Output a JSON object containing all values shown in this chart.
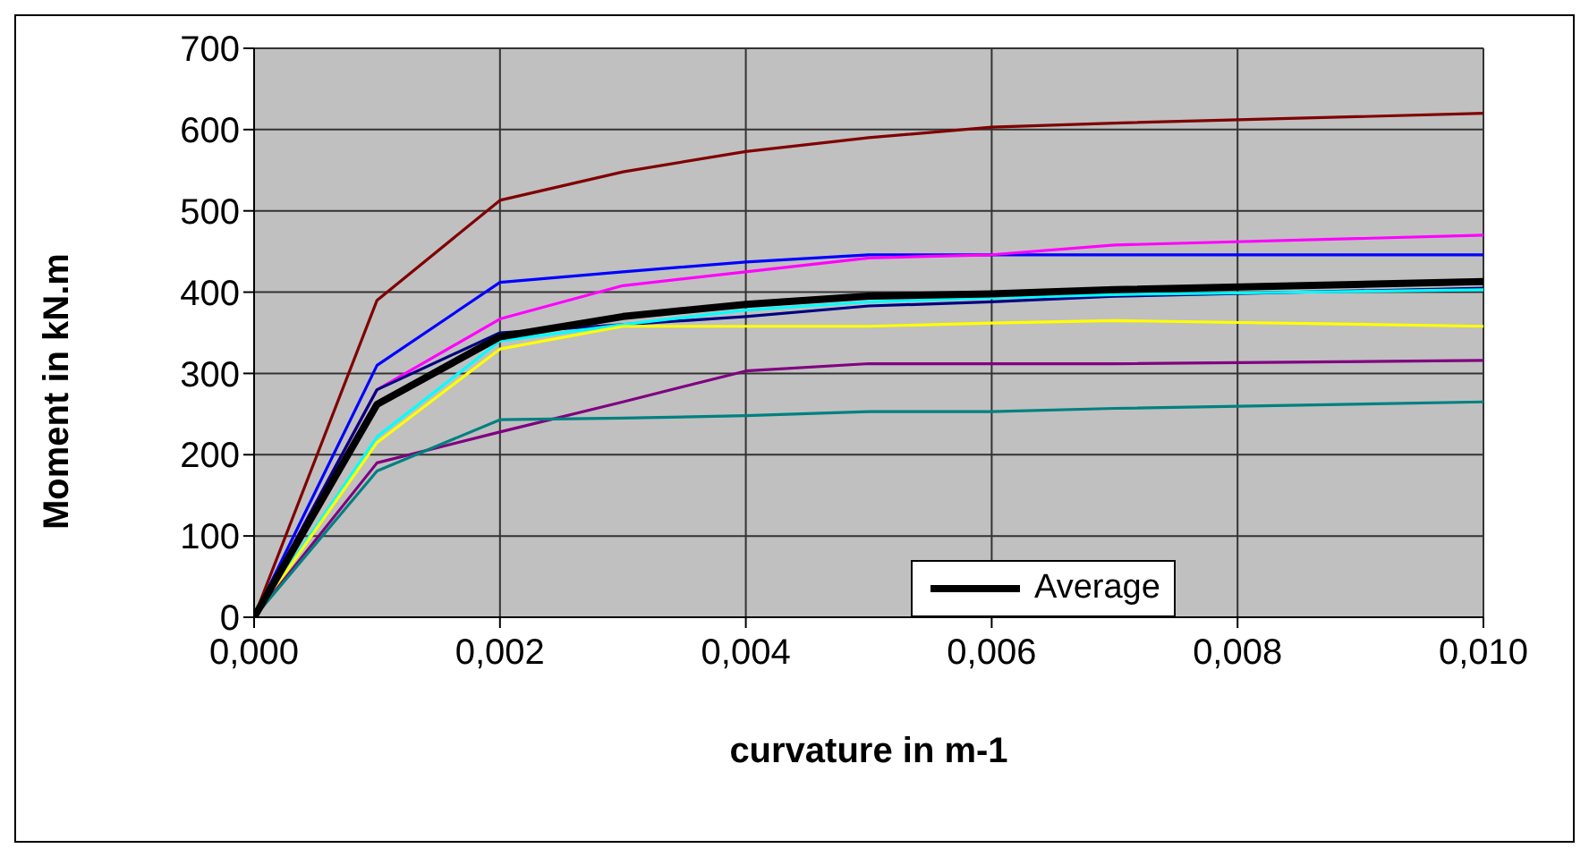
{
  "chart_data": {
    "type": "line",
    "xlabel": "curvature in m-1",
    "ylabel": "Moment in kN.m",
    "x": [
      0,
      0.001,
      0.002,
      0.003,
      0.004,
      0.005,
      0.006,
      0.007,
      0.01
    ],
    "series": [
      {
        "color": "#800000",
        "values": [
          0,
          390,
          513,
          548,
          573,
          590,
          603,
          608,
          620
        ]
      },
      {
        "color": "#0000ff",
        "values": [
          0,
          310,
          412,
          425,
          437,
          446,
          446,
          446,
          446
        ]
      },
      {
        "color": "#ff00ff",
        "values": [
          0,
          280,
          367,
          408,
          425,
          442,
          446,
          458,
          470
        ]
      },
      {
        "color": "#000080",
        "values": [
          0,
          280,
          350,
          360,
          370,
          383,
          388,
          395,
          405
        ]
      },
      {
        "color": "#00ffff",
        "values": [
          0,
          222,
          340,
          360,
          378,
          388,
          393,
          397,
          403
        ]
      },
      {
        "color": "#ffff00",
        "values": [
          0,
          215,
          330,
          358,
          358,
          358,
          362,
          365,
          358
        ]
      },
      {
        "color": "#800080",
        "values": [
          0,
          190,
          228,
          265,
          303,
          312,
          312,
          312,
          316
        ]
      },
      {
        "color": "#008080",
        "values": [
          0,
          180,
          243,
          245,
          248,
          253,
          253,
          257,
          265
        ]
      },
      {
        "name": "Average",
        "color": "#000000",
        "values": [
          0,
          262,
          345,
          370,
          385,
          395,
          398,
          403,
          413
        ]
      }
    ],
    "xlim": [
      0,
      0.01
    ],
    "xticks": [
      {
        "value": 0,
        "label": "0,000"
      },
      {
        "value": 0.002,
        "label": "0,002"
      },
      {
        "value": 0.004,
        "label": "0,004"
      },
      {
        "value": 0.006,
        "label": "0,006"
      },
      {
        "value": 0.008,
        "label": "0,008"
      },
      {
        "value": 0.01,
        "label": "0,010"
      }
    ],
    "ylim": [
      0,
      700
    ],
    "yticks": [
      0,
      100,
      200,
      300,
      400,
      500,
      600,
      700
    ],
    "grid": true,
    "legend": "bottom right",
    "marker": "none",
    "line_style": "solid"
  }
}
